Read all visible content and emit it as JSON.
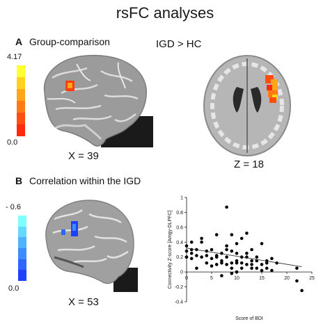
{
  "title": "rsFC analyses",
  "panel_a": {
    "letter": "A",
    "label": "Group-comparison",
    "contrast": "IGD > HC",
    "colorbar": {
      "max": "4.17",
      "min": "0.0",
      "colors": [
        "#ffff33",
        "#ffd21f",
        "#ffa51a",
        "#ff7a14",
        "#ff4f10",
        "#ff2a0d"
      ]
    },
    "sagittal_coord": "X = 39",
    "axial_coord": "Z = 18"
  },
  "panel_b": {
    "letter": "B",
    "label": "Correlation within the IGD",
    "colorbar": {
      "max": "- 0.6",
      "min": "0.0",
      "colors": [
        "#7fffff",
        "#66d9ff",
        "#4db3ff",
        "#3d8cff",
        "#2e66ff",
        "#1f40ff"
      ]
    },
    "sagittal_coord": "X = 53"
  },
  "chart_data": {
    "type": "scatter",
    "xlabel": "Score of BDI",
    "ylabel": "Connectivity Z-score [Amgy-DLPFC]",
    "xlim": [
      0,
      25
    ],
    "ylim": [
      -0.4,
      1.0
    ],
    "xticks": [
      "0",
      "5",
      "10",
      "15",
      "20",
      "25"
    ],
    "yticks": [
      "-0.4",
      "-0.2",
      "0",
      "0.2",
      "0.4",
      "0.6",
      "0.8",
      "1"
    ],
    "grid": false,
    "points": [
      [
        0,
        0.35
      ],
      [
        0,
        0.2
      ],
      [
        0,
        0.28
      ],
      [
        1,
        0.25
      ],
      [
        1,
        0.3
      ],
      [
        1,
        0.18
      ],
      [
        1,
        0.4
      ],
      [
        2,
        0.22
      ],
      [
        2,
        0.3
      ],
      [
        2,
        0.05
      ],
      [
        3,
        0.4
      ],
      [
        3,
        0.2
      ],
      [
        3,
        0.45
      ],
      [
        4,
        0.22
      ],
      [
        4,
        0.12
      ],
      [
        4,
        0.28
      ],
      [
        5,
        0.18
      ],
      [
        5,
        0.08
      ],
      [
        5,
        0.3
      ],
      [
        6,
        0.2
      ],
      [
        6,
        0.1
      ],
      [
        6,
        0.22
      ],
      [
        6,
        0.5
      ],
      [
        7,
        0.15
      ],
      [
        7,
        0.25
      ],
      [
        7,
        -0.05
      ],
      [
        7,
        0.12
      ],
      [
        8,
        0.87
      ],
      [
        8,
        0.35
      ],
      [
        8,
        0.2
      ],
      [
        8,
        0.1
      ],
      [
        8,
        0.3
      ],
      [
        9,
        0.5
      ],
      [
        9,
        0.12
      ],
      [
        9,
        0.05
      ],
      [
        9,
        0.28
      ],
      [
        9,
        -0.02
      ],
      [
        10,
        0.38
      ],
      [
        10,
        0.25
      ],
      [
        10,
        0.12
      ],
      [
        10,
        0.15
      ],
      [
        10,
        0.0
      ],
      [
        11,
        0.45
      ],
      [
        11,
        0.2
      ],
      [
        11,
        0.12
      ],
      [
        11,
        0.05
      ],
      [
        12,
        0.25
      ],
      [
        12,
        0.2
      ],
      [
        12,
        0.1
      ],
      [
        12,
        0.52
      ],
      [
        13,
        0.3
      ],
      [
        13,
        0.15
      ],
      [
        13,
        0.05
      ],
      [
        13,
        0.1
      ],
      [
        14,
        0.15
      ],
      [
        14,
        0.05
      ],
      [
        14,
        0.2
      ],
      [
        15,
        0.38
      ],
      [
        15,
        0.02
      ],
      [
        15,
        0.1
      ],
      [
        16,
        0.12
      ],
      [
        16,
        0.05
      ],
      [
        16,
        0.15
      ],
      [
        17,
        0.18
      ],
      [
        17,
        0.02
      ],
      [
        18,
        0.12
      ],
      [
        22,
        0.05
      ],
      [
        22,
        -0.12
      ],
      [
        23,
        -0.25
      ]
    ],
    "trendline": {
      "x": [
        0,
        23
      ],
      "y": [
        0.32,
        0.07
      ]
    }
  }
}
